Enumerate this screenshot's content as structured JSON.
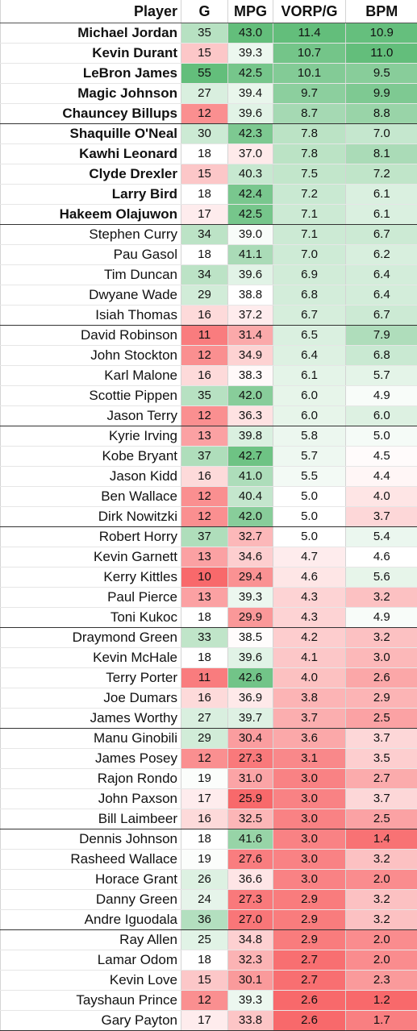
{
  "headers": {
    "player": "Player",
    "g": "G",
    "mpg": "MPG",
    "vorp": "VORP/G",
    "bpm": "BPM"
  },
  "rows": [
    {
      "player": "Michael Jordan",
      "g": "35",
      "mpg": "43.0",
      "vorp": "11.4",
      "bpm": "10.9",
      "bold": true
    },
    {
      "player": "Kevin Durant",
      "g": "15",
      "mpg": "39.3",
      "vorp": "10.7",
      "bpm": "11.0",
      "bold": true
    },
    {
      "player": "LeBron James",
      "g": "55",
      "mpg": "42.5",
      "vorp": "10.1",
      "bpm": "9.5",
      "bold": true
    },
    {
      "player": "Magic Johnson",
      "g": "27",
      "mpg": "39.4",
      "vorp": "9.7",
      "bpm": "9.9",
      "bold": true
    },
    {
      "player": "Chauncey Billups",
      "g": "12",
      "mpg": "39.6",
      "vorp": "8.7",
      "bpm": "8.8",
      "bold": true
    },
    {
      "player": "Shaquille O'Neal",
      "g": "30",
      "mpg": "42.3",
      "vorp": "7.8",
      "bpm": "7.0",
      "bold": true
    },
    {
      "player": "Kawhi Leonard",
      "g": "18",
      "mpg": "37.0",
      "vorp": "7.8",
      "bpm": "8.1",
      "bold": true
    },
    {
      "player": "Clyde Drexler",
      "g": "15",
      "mpg": "40.3",
      "vorp": "7.5",
      "bpm": "7.2",
      "bold": true
    },
    {
      "player": "Larry Bird",
      "g": "18",
      "mpg": "42.4",
      "vorp": "7.2",
      "bpm": "6.1",
      "bold": true
    },
    {
      "player": "Hakeem Olajuwon",
      "g": "17",
      "mpg": "42.5",
      "vorp": "7.1",
      "bpm": "6.1",
      "bold": true
    },
    {
      "player": "Stephen Curry",
      "g": "34",
      "mpg": "39.0",
      "vorp": "7.1",
      "bpm": "6.7",
      "bold": false
    },
    {
      "player": "Pau Gasol",
      "g": "18",
      "mpg": "41.1",
      "vorp": "7.0",
      "bpm": "6.2",
      "bold": false
    },
    {
      "player": "Tim Duncan",
      "g": "34",
      "mpg": "39.6",
      "vorp": "6.9",
      "bpm": "6.4",
      "bold": false
    },
    {
      "player": "Dwyane Wade",
      "g": "29",
      "mpg": "38.8",
      "vorp": "6.8",
      "bpm": "6.4",
      "bold": false
    },
    {
      "player": "Isiah Thomas",
      "g": "16",
      "mpg": "37.2",
      "vorp": "6.7",
      "bpm": "6.7",
      "bold": false
    },
    {
      "player": "David Robinson",
      "g": "11",
      "mpg": "31.4",
      "vorp": "6.5",
      "bpm": "7.9",
      "bold": false
    },
    {
      "player": "John Stockton",
      "g": "12",
      "mpg": "34.9",
      "vorp": "6.4",
      "bpm": "6.8",
      "bold": false
    },
    {
      "player": "Karl Malone",
      "g": "16",
      "mpg": "38.3",
      "vorp": "6.1",
      "bpm": "5.7",
      "bold": false
    },
    {
      "player": "Scottie Pippen",
      "g": "35",
      "mpg": "42.0",
      "vorp": "6.0",
      "bpm": "4.9",
      "bold": false
    },
    {
      "player": "Jason Terry",
      "g": "12",
      "mpg": "36.3",
      "vorp": "6.0",
      "bpm": "6.0",
      "bold": false
    },
    {
      "player": "Kyrie Irving",
      "g": "13",
      "mpg": "39.8",
      "vorp": "5.8",
      "bpm": "5.0",
      "bold": false
    },
    {
      "player": "Kobe Bryant",
      "g": "37",
      "mpg": "42.7",
      "vorp": "5.7",
      "bpm": "4.5",
      "bold": false
    },
    {
      "player": "Jason Kidd",
      "g": "16",
      "mpg": "41.0",
      "vorp": "5.5",
      "bpm": "4.4",
      "bold": false
    },
    {
      "player": "Ben Wallace",
      "g": "12",
      "mpg": "40.4",
      "vorp": "5.0",
      "bpm": "4.0",
      "bold": false
    },
    {
      "player": "Dirk Nowitzki",
      "g": "12",
      "mpg": "42.0",
      "vorp": "5.0",
      "bpm": "3.7",
      "bold": false
    },
    {
      "player": "Robert Horry",
      "g": "37",
      "mpg": "32.7",
      "vorp": "5.0",
      "bpm": "5.4",
      "bold": false
    },
    {
      "player": "Kevin Garnett",
      "g": "13",
      "mpg": "34.6",
      "vorp": "4.7",
      "bpm": "4.6",
      "bold": false
    },
    {
      "player": "Kerry Kittles",
      "g": "10",
      "mpg": "29.4",
      "vorp": "4.6",
      "bpm": "5.6",
      "bold": false
    },
    {
      "player": "Paul Pierce",
      "g": "13",
      "mpg": "39.3",
      "vorp": "4.3",
      "bpm": "3.2",
      "bold": false
    },
    {
      "player": "Toni Kukoc",
      "g": "18",
      "mpg": "29.9",
      "vorp": "4.3",
      "bpm": "4.9",
      "bold": false
    },
    {
      "player": "Draymond Green",
      "g": "33",
      "mpg": "38.5",
      "vorp": "4.2",
      "bpm": "3.2",
      "bold": false
    },
    {
      "player": "Kevin McHale",
      "g": "18",
      "mpg": "39.6",
      "vorp": "4.1",
      "bpm": "3.0",
      "bold": false
    },
    {
      "player": "Terry Porter",
      "g": "11",
      "mpg": "42.6",
      "vorp": "4.0",
      "bpm": "2.6",
      "bold": false
    },
    {
      "player": "Joe Dumars",
      "g": "16",
      "mpg": "36.9",
      "vorp": "3.8",
      "bpm": "2.9",
      "bold": false
    },
    {
      "player": "James Worthy",
      "g": "27",
      "mpg": "39.7",
      "vorp": "3.7",
      "bpm": "2.5",
      "bold": false
    },
    {
      "player": "Manu Ginobili",
      "g": "29",
      "mpg": "30.4",
      "vorp": "3.6",
      "bpm": "3.7",
      "bold": false
    },
    {
      "player": "James Posey",
      "g": "12",
      "mpg": "27.3",
      "vorp": "3.1",
      "bpm": "3.5",
      "bold": false
    },
    {
      "player": "Rajon Rondo",
      "g": "19",
      "mpg": "31.0",
      "vorp": "3.0",
      "bpm": "2.7",
      "bold": false
    },
    {
      "player": "John Paxson",
      "g": "17",
      "mpg": "25.9",
      "vorp": "3.0",
      "bpm": "3.7",
      "bold": false
    },
    {
      "player": "Bill Laimbeer",
      "g": "16",
      "mpg": "32.5",
      "vorp": "3.0",
      "bpm": "2.5",
      "bold": false
    },
    {
      "player": "Dennis Johnson",
      "g": "18",
      "mpg": "41.6",
      "vorp": "3.0",
      "bpm": "1.4",
      "bold": false
    },
    {
      "player": "Rasheed Wallace",
      "g": "19",
      "mpg": "27.6",
      "vorp": "3.0",
      "bpm": "3.2",
      "bold": false
    },
    {
      "player": "Horace Grant",
      "g": "26",
      "mpg": "36.6",
      "vorp": "3.0",
      "bpm": "2.0",
      "bold": false
    },
    {
      "player": "Danny Green",
      "g": "24",
      "mpg": "27.3",
      "vorp": "2.9",
      "bpm": "3.2",
      "bold": false
    },
    {
      "player": "Andre Iguodala",
      "g": "36",
      "mpg": "27.0",
      "vorp": "2.9",
      "bpm": "3.2",
      "bold": false
    },
    {
      "player": "Ray Allen",
      "g": "25",
      "mpg": "34.8",
      "vorp": "2.9",
      "bpm": "2.0",
      "bold": false
    },
    {
      "player": "Lamar Odom",
      "g": "18",
      "mpg": "32.3",
      "vorp": "2.7",
      "bpm": "2.0",
      "bold": false
    },
    {
      "player": "Kevin Love",
      "g": "15",
      "mpg": "30.1",
      "vorp": "2.7",
      "bpm": "2.3",
      "bold": false
    },
    {
      "player": "Tayshaun Prince",
      "g": "12",
      "mpg": "39.3",
      "vorp": "2.6",
      "bpm": "1.2",
      "bold": false
    },
    {
      "player": "Gary Payton",
      "g": "17",
      "mpg": "33.8",
      "vorp": "2.6",
      "bpm": "1.7",
      "bold": false
    }
  ],
  "color_scale": {
    "low": "#f8696b",
    "mid": "#ffffff",
    "high": "#63be7b"
  }
}
